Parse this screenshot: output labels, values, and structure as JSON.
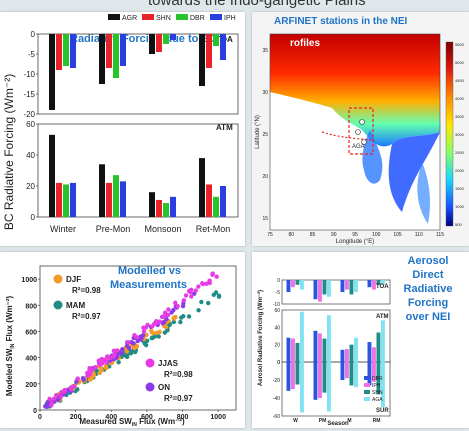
{
  "page": {
    "top_title_fragment": "towards the Indo-gangetic Plains"
  },
  "panel_bar": {
    "ylabel": "BC Radiative Forcing (Wm⁻²)",
    "title": "Radiative Forcing due to BC",
    "legend": [
      "AGR",
      "SHN",
      "DBR",
      "IPH"
    ],
    "colors": {
      "AGR": "#111111",
      "SHN": "#e8242a",
      "DBR": "#27c52b",
      "IPH": "#2b3fe0"
    },
    "toa_label": "TOA",
    "atm_label": "ATM",
    "toa_ticks": [
      "-20",
      "-15",
      "-10",
      "-5",
      "0"
    ],
    "atm_ticks": [
      "0",
      "20",
      "40",
      "60"
    ],
    "categories": [
      "Winter",
      "Pre-Mon",
      "Monsoon",
      "Ret-Mon"
    ]
  },
  "panel_map": {
    "title": "ARFINET stations in the NEI",
    "subtitle_fragment": "rofiles",
    "xlabel": "Longitude (°E)",
    "ylabel": "Latitude (°N)",
    "x_ticks": [
      "75",
      "80",
      "85",
      "90",
      "95",
      "100",
      "105",
      "110",
      "115"
    ],
    "y_ticks": [
      "35",
      "30",
      "25",
      "20",
      "15"
    ],
    "colorbar_ticks": [
      "5500",
      "5000",
      "4500",
      "4000",
      "3500",
      "3000",
      "2500",
      "2000",
      "1500",
      "1000",
      "500"
    ],
    "site_label": "AGA"
  },
  "panel_scatter": {
    "title_line1": "Modelled vs",
    "title_line2": "Measurements",
    "xlabel": "Measured SW",
    "xlabel_sub": "IN",
    "xlabel_tail": " Flux (Wm⁻²)",
    "ylabel": "Modeled SW",
    "ylabel_sub": "IN",
    "ylabel_tail": " Flux (Wm⁻²)",
    "x_ticks": [
      "0",
      "200",
      "400",
      "600",
      "800",
      "1000"
    ],
    "y_ticks": [
      "0",
      "200",
      "400",
      "600",
      "800",
      "1000"
    ],
    "legend": [
      {
        "name": "DJF",
        "r2": "R²=0.98",
        "color": "#f39a2a"
      },
      {
        "name": "MAM",
        "r2": "R²=0.97",
        "color": "#1f8c86"
      },
      {
        "name": "JJAS",
        "r2": "R²=0.98",
        "color": "#e83ae6"
      },
      {
        "name": "ON",
        "r2": "R²=0.97",
        "color": "#8a3ae6"
      }
    ]
  },
  "panel_aer": {
    "side_text": [
      "Aerosol",
      "Direct",
      "Radiative",
      "Forcing",
      "over NEI"
    ],
    "ylabel": "Aerosol Radiative Forcing (Wm⁻²)",
    "xlabel": "Season",
    "categories": [
      "W",
      "PM",
      "M",
      "RM"
    ],
    "toa_label": "TOA",
    "atm_label": "ATM",
    "sur_label": "SUR",
    "toa_ticks": [
      "0",
      "-5",
      "-10"
    ],
    "atm_ticks": [
      "60",
      "40",
      "20",
      "0"
    ],
    "sur_ticks": [
      "0",
      "-20",
      "-40",
      "-60"
    ],
    "legend": [
      "DBR",
      "IPH",
      "SHN",
      "AGA"
    ],
    "colors": {
      "DBR": "#2b54e0",
      "IPH": "#ee72e6",
      "SHN": "#1f8c86",
      "AGA": "#7fe3f2"
    }
  },
  "chart_data": [
    {
      "type": "bar",
      "title": "Radiative Forcing due to BC",
      "subtitle": "TOA",
      "ylabel": "BC Radiative Forcing (Wm⁻²)",
      "categories": [
        "Winter",
        "Pre-Mon",
        "Monsoon",
        "Ret-Mon"
      ],
      "ylim": [
        -20,
        0
      ],
      "series": [
        {
          "name": "AGR",
          "values": [
            -19,
            -12.5,
            -5,
            -13
          ]
        },
        {
          "name": "SHN",
          "values": [
            -9,
            -8.5,
            -4.5,
            -8.5
          ]
        },
        {
          "name": "DBR",
          "values": [
            -8,
            -11,
            -2.5,
            -3
          ]
        },
        {
          "name": "IPH",
          "values": [
            -8.5,
            -8,
            -1.5,
            -6.5
          ]
        }
      ]
    },
    {
      "type": "bar",
      "subtitle": "ATM",
      "categories": [
        "Winter",
        "Pre-Mon",
        "Monsoon",
        "Ret-Mon"
      ],
      "ylim": [
        0,
        60
      ],
      "series": [
        {
          "name": "AGR",
          "values": [
            53,
            34,
            16,
            38
          ]
        },
        {
          "name": "SHN",
          "values": [
            22,
            22,
            11,
            21
          ]
        },
        {
          "name": "DBR",
          "values": [
            21,
            27,
            9,
            13
          ]
        },
        {
          "name": "IPH",
          "values": [
            22,
            23,
            13,
            20
          ]
        }
      ]
    },
    {
      "type": "scatter",
      "title": "Modelled vs Measurements",
      "xlabel": "Measured SWIN Flux (Wm⁻²)",
      "ylabel": "Modeled SWIN Flux (Wm⁻²)",
      "xlim": [
        0,
        1100
      ],
      "ylim": [
        0,
        1100
      ],
      "series": [
        {
          "name": "DJF",
          "x_range": [
            50,
            780
          ],
          "slope": 0.93
        },
        {
          "name": "MAM",
          "x_range": [
            30,
            1050
          ],
          "slope": 0.88
        },
        {
          "name": "JJAS",
          "x_range": [
            50,
            1000
          ],
          "slope": 1.05
        },
        {
          "name": "ON",
          "x_range": [
            30,
            900
          ],
          "slope": 1.0
        }
      ]
    },
    {
      "type": "bar",
      "xlabel": "Season",
      "ylabel": "Aerosol Radiative Forcing (Wm⁻²)",
      "categories": [
        "W",
        "PM",
        "M",
        "RM"
      ],
      "panels": [
        {
          "name": "TOA",
          "ylim": [
            -10,
            0
          ],
          "series": [
            {
              "name": "DBR",
              "values": [
                -5,
                -8,
                -5,
                -3
              ]
            },
            {
              "name": "IPH",
              "values": [
                -3,
                -9,
                -4,
                -4
              ]
            },
            {
              "name": "SHN",
              "values": [
                -2,
                -6,
                -6,
                -2
              ]
            },
            {
              "name": "AGA",
              "values": [
                -4,
                -7,
                -5,
                -2
              ]
            }
          ]
        },
        {
          "name": "ATM",
          "ylim": [
            0,
            60
          ],
          "series": [
            {
              "name": "DBR",
              "values": [
                28,
                36,
                14,
                23
              ]
            },
            {
              "name": "IPH",
              "values": [
                27,
                33,
                15,
                17
              ]
            },
            {
              "name": "SHN",
              "values": [
                22,
                27,
                20,
                34
              ]
            },
            {
              "name": "AGA",
              "values": [
                58,
                54,
                28,
                48
              ]
            }
          ]
        },
        {
          "name": "SUR",
          "ylim": [
            -60,
            0
          ],
          "series": [
            {
              "name": "DBR",
              "values": [
                -32,
                -42,
                -20,
                -26
              ]
            },
            {
              "name": "IPH",
              "values": [
                -30,
                -40,
                -18,
                -22
              ]
            },
            {
              "name": "SHN",
              "values": [
                -25,
                -34,
                -26,
                -36
              ]
            },
            {
              "name": "AGA",
              "values": [
                -56,
                -55,
                -28,
                -50
              ]
            }
          ]
        }
      ]
    }
  ]
}
